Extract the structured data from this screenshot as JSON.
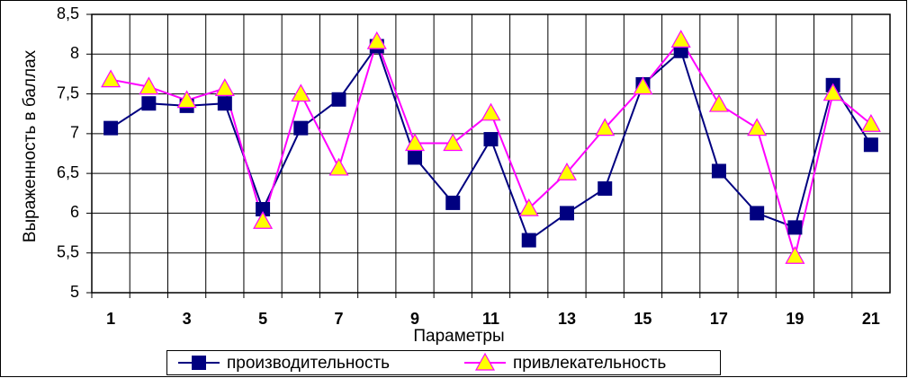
{
  "chart_data": {
    "type": "line",
    "x_label": "Параметры",
    "y_label": "Выраженность в баллах",
    "categories": [
      "1",
      null,
      "3",
      null,
      "5",
      null,
      "7",
      null,
      "9",
      null,
      "11",
      null,
      "13",
      null,
      "15",
      null,
      "17",
      null,
      "19",
      null,
      "21"
    ],
    "series": [
      {
        "name": "производительность",
        "color": "#000080",
        "marker": "square",
        "values": [
          7.07,
          7.38,
          7.35,
          7.38,
          6.05,
          7.07,
          7.43,
          8.1,
          6.7,
          6.13,
          6.93,
          5.66,
          6.0,
          6.31,
          7.62,
          8.04,
          6.53,
          6.0,
          5.82,
          7.61,
          6.86
        ]
      },
      {
        "name": "привлекательность",
        "color": "#ff00ff",
        "marker": "triangle",
        "marker_fill": "#ffff00",
        "values": [
          7.68,
          7.59,
          7.42,
          7.57,
          5.9,
          7.5,
          6.57,
          8.16,
          6.88,
          6.88,
          7.26,
          6.06,
          6.51,
          7.07,
          7.59,
          8.18,
          7.37,
          7.07,
          5.46,
          7.51,
          7.12
        ]
      }
    ],
    "ylim": [
      5,
      8.5
    ],
    "yticks": [
      5,
      {
        "value": 5.5,
        "label": "5,5"
      },
      6,
      {
        "value": 6.5,
        "label": "6,5"
      },
      7,
      {
        "value": 7.5,
        "label": "7,5"
      },
      8,
      {
        "value": 8.5,
        "label": "8,5"
      }
    ],
    "grid": true,
    "legend": "bottom"
  }
}
